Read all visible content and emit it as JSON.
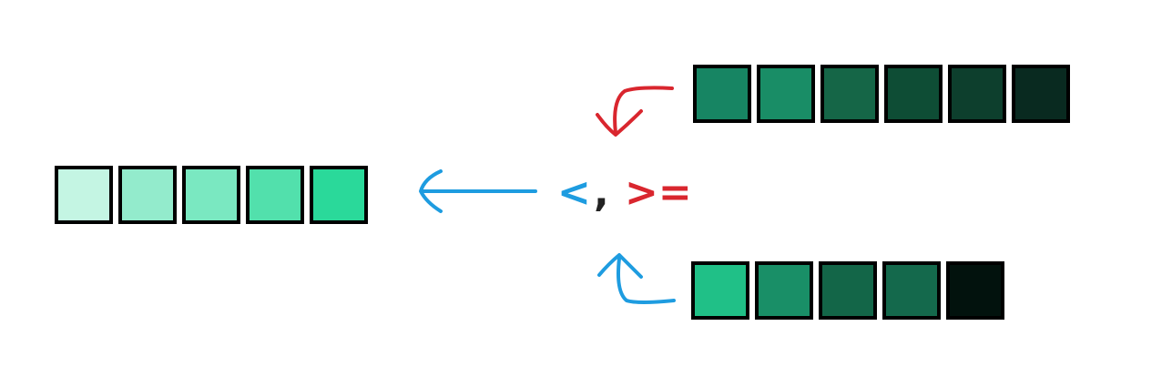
{
  "operators": {
    "less_than": "<",
    "separator": ",",
    "greater_equal": ">="
  },
  "colors": {
    "less_than": "#1e9ce0",
    "separator": "#222222",
    "greater_equal": "#d9262e",
    "arrow_blue": "#1e9ce0",
    "arrow_red": "#d9262e",
    "border": "#000000"
  },
  "strips": {
    "result_left": [
      "#c4f5e3",
      "#93ebcc",
      "#7ae8c1",
      "#52e0ac",
      "#2ad99a"
    ],
    "input_top": [
      "#178563",
      "#198d66",
      "#156647",
      "#0e4d35",
      "#0d3f2d",
      "#092a20"
    ],
    "input_bottom": [
      "#20c087",
      "#198f67",
      "#136648",
      "#14694c",
      "#02120d"
    ]
  }
}
